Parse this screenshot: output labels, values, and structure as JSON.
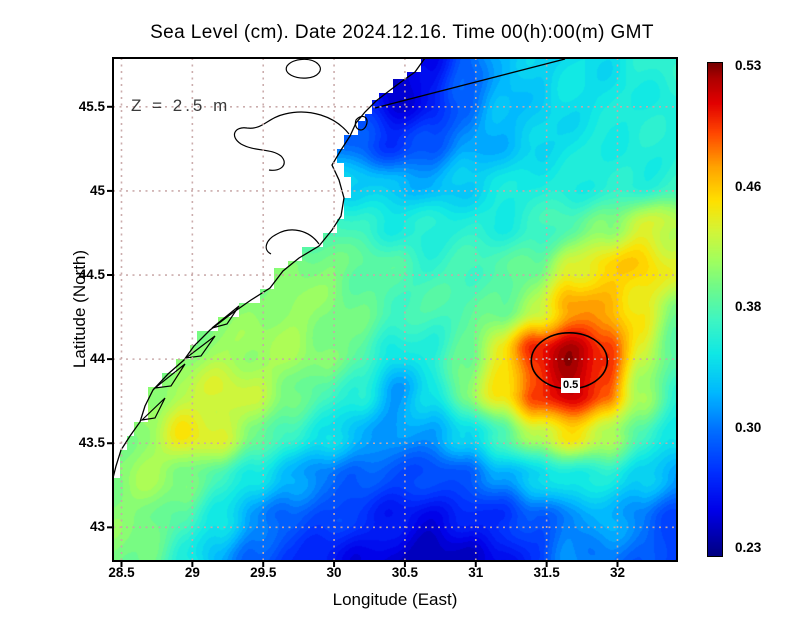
{
  "title": "Sea Level (cm). Date 2024.12.16. Time 00(h):00(m) GMT",
  "annotation": "Z = 2.5 m",
  "axes": {
    "x": {
      "label": "Longitude (East)",
      "ticks": [
        "28.5",
        "29",
        "29.5",
        "30",
        "30.5",
        "31",
        "31.5",
        "32"
      ],
      "tick_values": [
        28.5,
        29,
        29.5,
        30,
        30.5,
        31,
        31.5,
        32
      ],
      "range": [
        28.44,
        32.42
      ]
    },
    "y": {
      "label": "Latitude (North)",
      "ticks": [
        "45.5",
        "45",
        "44.5",
        "44",
        "43.5",
        "43"
      ],
      "tick_values": [
        45.5,
        45,
        44.5,
        44,
        43.5,
        43
      ],
      "range": [
        42.8,
        45.79
      ]
    }
  },
  "colorbar": {
    "labels": [
      "0.53",
      "0.46",
      "0.38",
      "0.30",
      "0.23"
    ],
    "values": [
      0.53,
      0.46,
      0.38,
      0.3,
      0.23
    ],
    "vmin": 0.23,
    "vmax": 0.53,
    "accent_low": "#000082",
    "accent_high": "#770000"
  },
  "contour": {
    "label": "0.5",
    "value": 0.5,
    "center_lon": 31.66,
    "center_lat": 43.99
  },
  "chart_data": {
    "type": "heatmap",
    "title": "Sea Level (cm). Date 2024.12.16. Time 00(h):00(m) GMT",
    "xlabel": "Longitude (East)",
    "ylabel": "Latitude (North)",
    "colormap": "jet",
    "vmin": 0.23,
    "vmax": 0.53,
    "annotations": [
      "Z = 2.5 m",
      "0.5 contour around eddy at 31.66E 43.99N"
    ],
    "lon": [
      28.44,
      28.69,
      28.94,
      29.19,
      29.44,
      29.69,
      29.93,
      30.18,
      30.43,
      30.68,
      30.93,
      31.18,
      31.42,
      31.67,
      31.92,
      32.17,
      32.42
    ],
    "lat": [
      45.79,
      45.54,
      45.29,
      45.04,
      44.8,
      44.55,
      44.3,
      44.05,
      43.8,
      43.55,
      43.3,
      43.05,
      42.8
    ],
    "values": [
      [
        0.3,
        0.3,
        0.3,
        0.29,
        0.28,
        0.27,
        0.26,
        0.25,
        0.24,
        0.26,
        0.3,
        0.33,
        0.34,
        0.35,
        0.35,
        0.36,
        0.37
      ],
      [
        0.3,
        0.3,
        0.29,
        0.29,
        0.29,
        0.3,
        0.31,
        0.28,
        0.25,
        0.27,
        0.3,
        0.33,
        0.34,
        0.35,
        0.35,
        0.36,
        0.36
      ],
      [
        0.31,
        0.31,
        0.3,
        0.3,
        0.3,
        0.31,
        0.31,
        0.3,
        0.28,
        0.29,
        0.32,
        0.33,
        0.34,
        0.35,
        0.36,
        0.36,
        0.36
      ],
      [
        0.33,
        0.32,
        0.3,
        0.28,
        0.29,
        0.32,
        0.34,
        0.34,
        0.33,
        0.33,
        0.34,
        0.35,
        0.36,
        0.36,
        0.36,
        0.36,
        0.37
      ],
      [
        0.35,
        0.34,
        0.33,
        0.31,
        0.33,
        0.36,
        0.38,
        0.37,
        0.36,
        0.36,
        0.36,
        0.36,
        0.37,
        0.38,
        0.4,
        0.43,
        0.42
      ],
      [
        0.37,
        0.36,
        0.36,
        0.36,
        0.38,
        0.4,
        0.4,
        0.39,
        0.38,
        0.37,
        0.38,
        0.38,
        0.39,
        0.43,
        0.45,
        0.45,
        0.43
      ],
      [
        0.32,
        0.38,
        0.39,
        0.4,
        0.4,
        0.41,
        0.4,
        0.39,
        0.38,
        0.38,
        0.38,
        0.39,
        0.42,
        0.47,
        0.46,
        0.44,
        0.4
      ],
      [
        0.33,
        0.36,
        0.4,
        0.41,
        0.41,
        0.41,
        0.4,
        0.39,
        0.35,
        0.36,
        0.39,
        0.44,
        0.5,
        0.52,
        0.5,
        0.43,
        0.38
      ],
      [
        0.36,
        0.4,
        0.42,
        0.43,
        0.42,
        0.4,
        0.38,
        0.36,
        0.32,
        0.35,
        0.4,
        0.44,
        0.49,
        0.52,
        0.48,
        0.41,
        0.37
      ],
      [
        0.39,
        0.41,
        0.44,
        0.43,
        0.4,
        0.37,
        0.35,
        0.33,
        0.32,
        0.32,
        0.34,
        0.38,
        0.42,
        0.44,
        0.42,
        0.38,
        0.35
      ],
      [
        0.4,
        0.41,
        0.4,
        0.38,
        0.35,
        0.33,
        0.31,
        0.3,
        0.29,
        0.29,
        0.3,
        0.32,
        0.34,
        0.36,
        0.36,
        0.34,
        0.32
      ],
      [
        0.4,
        0.4,
        0.38,
        0.35,
        0.32,
        0.3,
        0.29,
        0.28,
        0.27,
        0.26,
        0.27,
        0.28,
        0.3,
        0.31,
        0.33,
        0.31,
        0.29
      ],
      [
        0.4,
        0.39,
        0.36,
        0.33,
        0.3,
        0.28,
        0.27,
        0.26,
        0.25,
        0.24,
        0.25,
        0.26,
        0.28,
        0.32,
        0.31,
        0.3,
        0.28
      ]
    ]
  }
}
